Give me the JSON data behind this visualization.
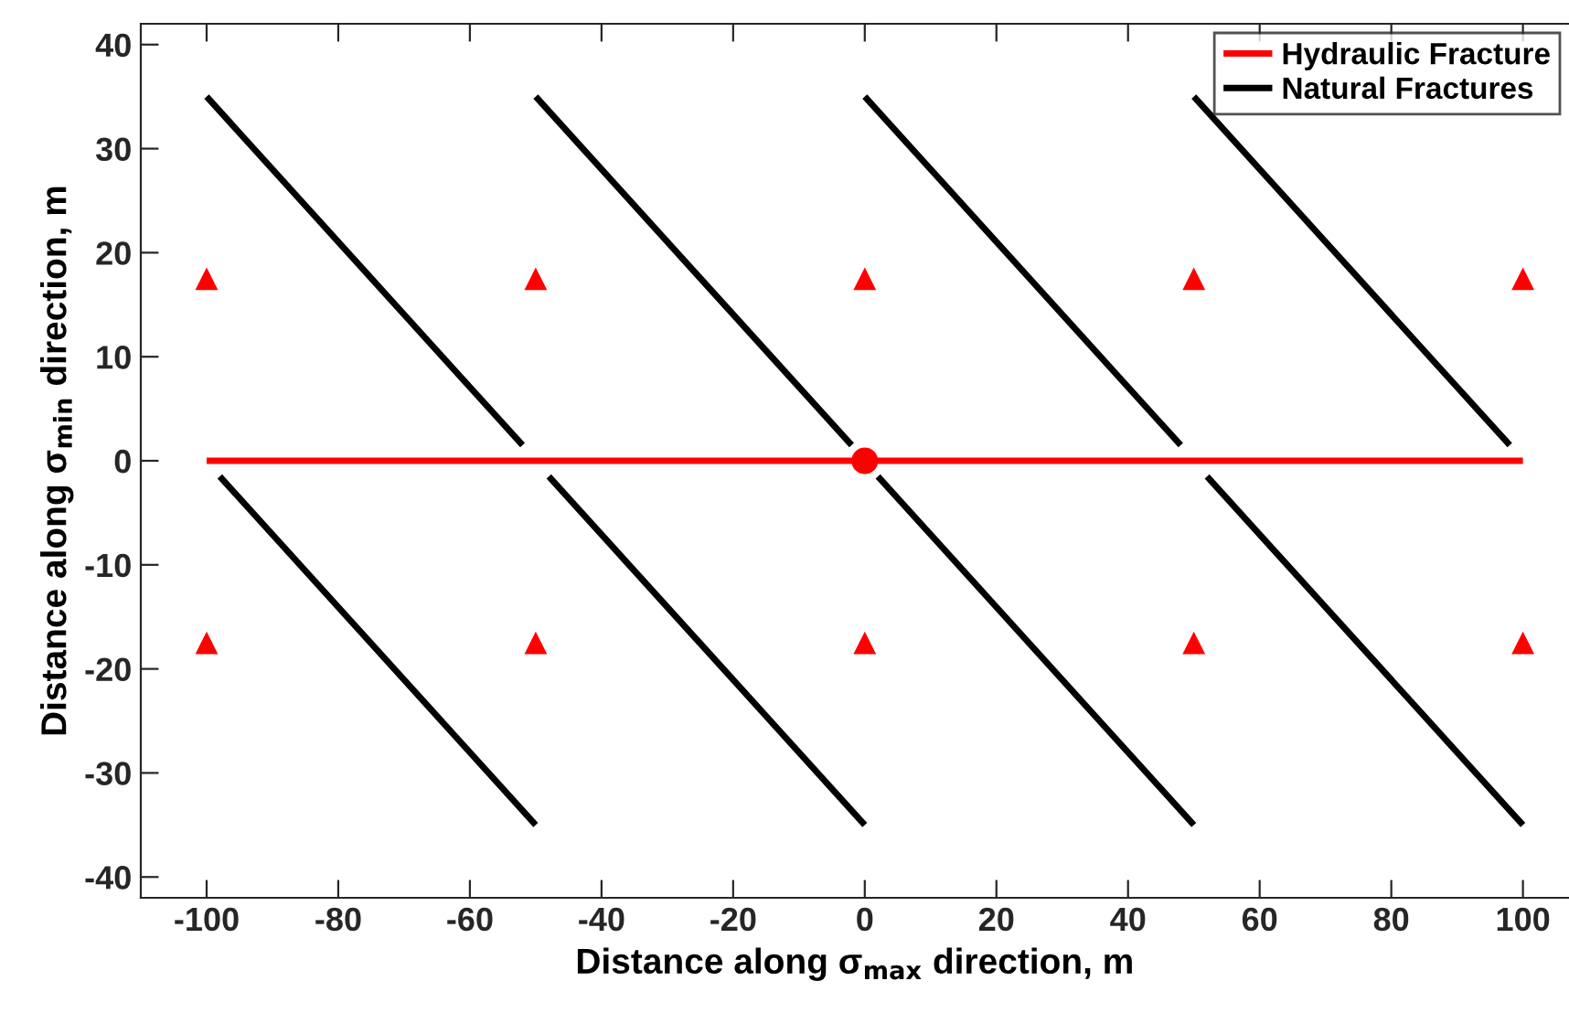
{
  "chart_data": {
    "type": "line",
    "xlabel": "Distance along σ$_{max}$ direction, m",
    "ylabel": "Distance along σ$_{min}$ direction, m",
    "xlim": [
      -110,
      107
    ],
    "ylim": [
      -42,
      42
    ],
    "xticks": [
      -100,
      -80,
      -60,
      -40,
      -20,
      0,
      20,
      40,
      60,
      80,
      100
    ],
    "yticks": [
      -40,
      -30,
      -20,
      -10,
      0,
      10,
      20,
      30,
      40
    ],
    "grid": false,
    "legend": "top right",
    "line_style": "solid",
    "marker": "none",
    "series": [
      {
        "name": "Hydraulic Fracture",
        "color": "#ff0000",
        "x": [
          -100,
          100
        ],
        "values": [
          0,
          0
        ]
      },
      {
        "name": "Natural Fractures",
        "color": "#000000",
        "x": [
          -100,
          -52
        ],
        "values": [
          35,
          1.5
        ]
      },
      {
        "color": "#000000",
        "x": [
          -50,
          -2
        ],
        "values": [
          35,
          1.5
        ]
      },
      {
        "color": "#000000",
        "x": [
          0,
          48
        ],
        "values": [
          35,
          1.5
        ]
      },
      {
        "color": "#000000",
        "x": [
          50,
          98
        ],
        "values": [
          35,
          1.5
        ]
      },
      {
        "color": "#000000",
        "x": [
          -98,
          -50
        ],
        "values": [
          -1.5,
          -35
        ]
      },
      {
        "color": "#000000",
        "x": [
          -48,
          0
        ],
        "values": [
          -1.5,
          -35
        ]
      },
      {
        "color": "#000000",
        "x": [
          2,
          50
        ],
        "values": [
          -1.5,
          -35
        ]
      },
      {
        "color": "#000000",
        "x": [
          52,
          100
        ],
        "values": [
          -1.5,
          -35
        ]
      },
      {
        "type": "scatter",
        "marker": "circle",
        "color": "#ff0000",
        "x": [
          0
        ],
        "values": [
          0
        ]
      },
      {
        "type": "scatter",
        "marker": "triangle",
        "color": "#ff0000",
        "x": [
          -100,
          -50,
          0,
          50,
          100,
          -100,
          -50,
          0,
          50,
          100
        ],
        "values": [
          17.5,
          17.5,
          17.5,
          17.5,
          17.5,
          -17.5,
          -17.5,
          -17.5,
          -17.5,
          -17.5
        ]
      }
    ]
  }
}
